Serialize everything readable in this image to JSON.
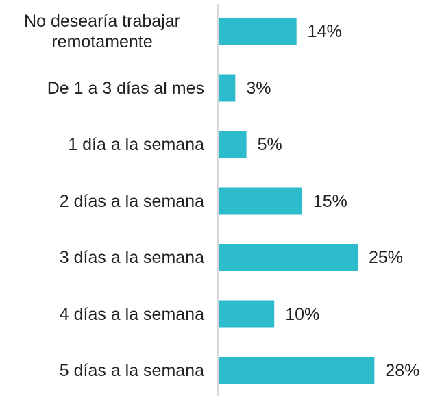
{
  "chart_data": {
    "type": "bar",
    "orientation": "horizontal",
    "categories": [
      "No desearía trabajar remotamente",
      "De 1 a 3 días al mes",
      "1 día a la semana",
      "2 días a la semana",
      "3 días a la semana",
      "4 días a la semana",
      "5 días a la semana"
    ],
    "values": [
      14,
      3,
      5,
      15,
      25,
      10,
      28
    ],
    "value_labels": [
      "14%",
      "3%",
      "5%",
      "15%",
      "25%",
      "10%",
      "28%"
    ],
    "color": "#2cbccc"
  }
}
